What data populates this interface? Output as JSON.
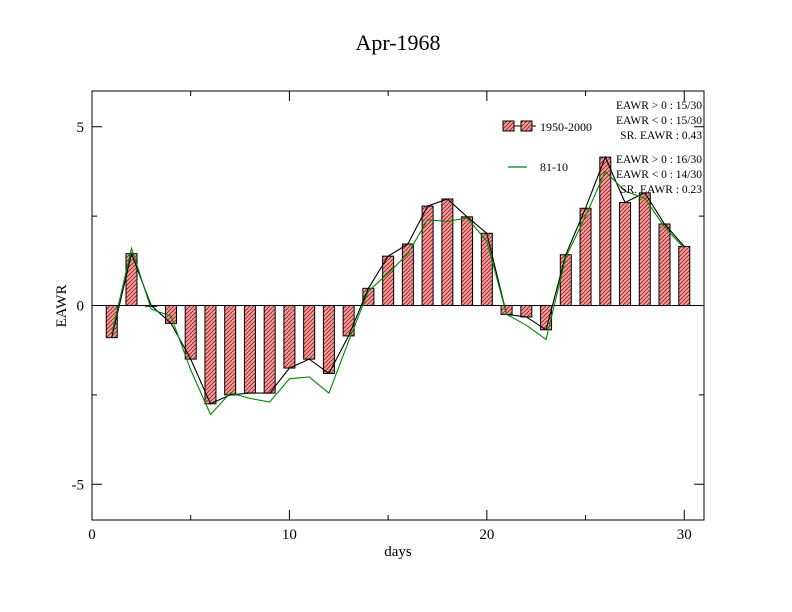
{
  "chart_data": {
    "type": "bar",
    "title": "Apr-1968",
    "xlabel": "days",
    "ylabel": "EAWR",
    "xlim": [
      0,
      31
    ],
    "ylim": [
      -6,
      6
    ],
    "xticks": [
      "0",
      "10",
      "20",
      "30"
    ],
    "yticks": [
      "-5",
      "0",
      "5"
    ],
    "grid": false,
    "legend_position": "top-right",
    "x": [
      1,
      2,
      3,
      4,
      5,
      6,
      7,
      8,
      9,
      10,
      11,
      12,
      13,
      14,
      15,
      16,
      17,
      18,
      19,
      20,
      21,
      22,
      23,
      24,
      25,
      26,
      27,
      28,
      29,
      30
    ],
    "series": [
      {
        "name": "1950-2000",
        "kind": "bar",
        "color": "#e06060",
        "values": [
          -0.9,
          1.45,
          0.0,
          -0.5,
          -1.5,
          -2.75,
          -2.5,
          -2.45,
          -2.45,
          -1.75,
          -1.5,
          -1.9,
          -0.85,
          0.48,
          1.38,
          1.72,
          2.78,
          2.98,
          2.48,
          2.02,
          -0.25,
          -0.32,
          -0.68,
          1.42,
          2.72,
          4.15,
          2.88,
          3.15,
          2.28,
          1.65
        ]
      },
      {
        "name": "",
        "kind": "line",
        "color": "#000000",
        "values": [
          -0.9,
          1.45,
          0.0,
          -0.5,
          -1.5,
          -2.75,
          -2.5,
          -2.45,
          -2.45,
          -1.75,
          -1.5,
          -1.9,
          -0.85,
          0.48,
          1.38,
          1.72,
          2.78,
          2.98,
          2.48,
          2.02,
          -0.25,
          -0.32,
          -0.68,
          1.42,
          2.72,
          4.15,
          2.88,
          3.15,
          2.28,
          1.65
        ]
      },
      {
        "name": "81-10",
        "kind": "line",
        "color": "#008800",
        "values": [
          -0.8,
          1.6,
          -0.1,
          -0.3,
          -1.8,
          -3.05,
          -2.45,
          -2.6,
          -2.7,
          -2.05,
          -2.0,
          -2.45,
          -1.0,
          0.4,
          0.9,
          1.45,
          2.4,
          2.35,
          2.45,
          1.8,
          -0.25,
          -0.55,
          -0.95,
          1.35,
          2.5,
          3.75,
          3.2,
          3.0,
          2.2,
          1.6
        ]
      }
    ],
    "stats": [
      {
        "color": "#000000",
        "lines": [
          "EAWR > 0 : 15/30",
          "EAWR < 0 : 15/30",
          "SR. EAWR :  0.43"
        ]
      },
      {
        "color": "#000000",
        "lines": [
          "EAWR > 0 : 16/30",
          "EAWR < 0 : 14/30",
          "SR. EAWR :  0.23"
        ]
      }
    ]
  }
}
